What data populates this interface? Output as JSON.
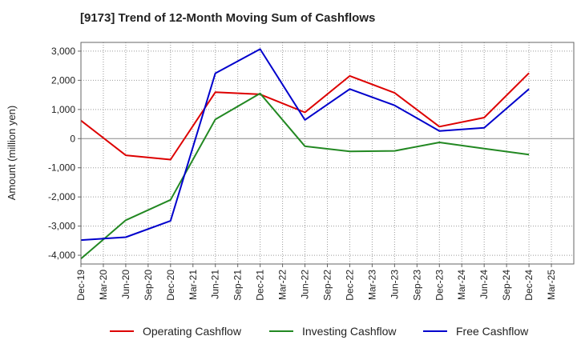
{
  "chart_data": {
    "type": "line",
    "title": "[9173]  Trend of 12-Month Moving Sum of Cashflows",
    "ylabel": "Amount (million yen)",
    "xlabel": "",
    "ylim": [
      -4300,
      3300
    ],
    "yticks": [
      3000,
      2000,
      1000,
      0,
      -1000,
      -2000,
      -3000,
      -4000
    ],
    "ytick_labels": [
      "3,000",
      "2,000",
      "1,000",
      "0",
      "-1,000",
      "-2,000",
      "-3,000",
      "-4,000"
    ],
    "categories": [
      "Dec-19",
      "Mar-20",
      "Jun-20",
      "Sep-20",
      "Dec-20",
      "Mar-21",
      "Jun-21",
      "Sep-21",
      "Dec-21",
      "Mar-22",
      "Jun-22",
      "Sep-22",
      "Dec-22",
      "Mar-23",
      "Jun-23",
      "Sep-23",
      "Dec-23",
      "Mar-24",
      "Jun-24",
      "Sep-24",
      "Dec-24",
      "Mar-25"
    ],
    "grid": true,
    "legend_position": "bottom",
    "series": [
      {
        "name": "Operating Cashflow",
        "color": "#dd0000",
        "points": [
          [
            "Dec-19",
            620
          ],
          [
            "Jun-20",
            -570
          ],
          [
            "Dec-20",
            -720
          ],
          [
            "Jun-21",
            1590
          ],
          [
            "Dec-21",
            1520
          ],
          [
            "Jun-22",
            900
          ],
          [
            "Dec-22",
            2150
          ],
          [
            "Jun-23",
            1570
          ],
          [
            "Dec-23",
            410
          ],
          [
            "Jun-24",
            720
          ],
          [
            "Dec-24",
            2250
          ]
        ]
      },
      {
        "name": "Investing Cashflow",
        "color": "#228822",
        "points": [
          [
            "Dec-19",
            -4120
          ],
          [
            "Jun-20",
            -2800
          ],
          [
            "Dec-20",
            -2100
          ],
          [
            "Jun-21",
            660
          ],
          [
            "Dec-21",
            1550
          ],
          [
            "Jun-22",
            -260
          ],
          [
            "Dec-22",
            -440
          ],
          [
            "Jun-23",
            -420
          ],
          [
            "Dec-23",
            -130
          ],
          [
            "Jun-24",
            -340
          ],
          [
            "Dec-24",
            -550
          ]
        ]
      },
      {
        "name": "Free Cashflow",
        "color": "#0000cc",
        "points": [
          [
            "Dec-19",
            -3480
          ],
          [
            "Jun-20",
            -3380
          ],
          [
            "Dec-20",
            -2820
          ],
          [
            "Jun-21",
            2240
          ],
          [
            "Dec-21",
            3070
          ],
          [
            "Jun-22",
            640
          ],
          [
            "Dec-22",
            1700
          ],
          [
            "Jun-23",
            1140
          ],
          [
            "Dec-23",
            260
          ],
          [
            "Jun-24",
            370
          ],
          [
            "Dec-24",
            1700
          ]
        ]
      }
    ]
  }
}
